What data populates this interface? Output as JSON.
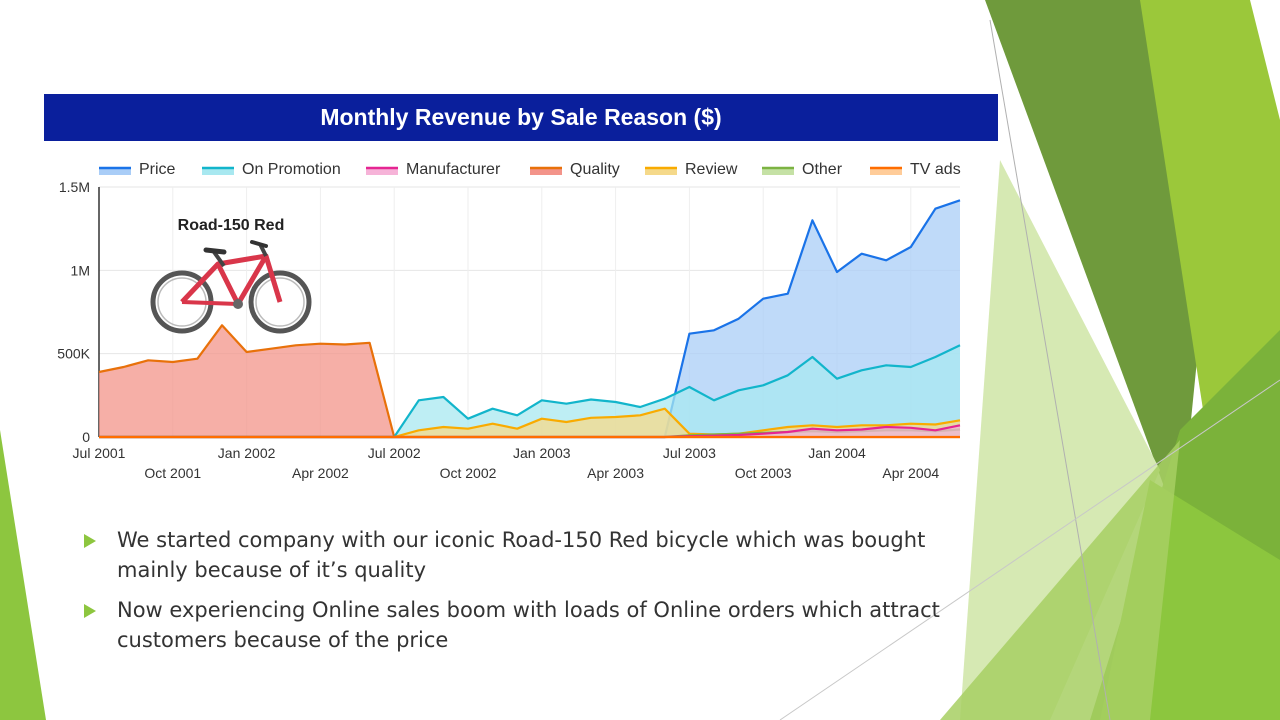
{
  "slide": {
    "bullets": [
      "We started company with our iconic Road-150 Red bicycle which was bought mainly because of it’s quality",
      "Now experiencing Online sales boom with loads of Online orders which attract customers because of the price"
    ],
    "bullet_color": "#8dc63f"
  },
  "chart_data": {
    "type": "area",
    "title": "Monthly Revenue by Sale Reason ($)",
    "title_bg": "#0a1f9c",
    "xlabel": "",
    "ylabel": "",
    "ylim": [
      0,
      1500000
    ],
    "yticks": [
      0,
      500000,
      1000000,
      1500000
    ],
    "ytick_labels": [
      "0",
      "500K",
      "1M",
      "1.5M"
    ],
    "grid": true,
    "legend_position": "top",
    "annotation": "Road-150 Red",
    "annotation_icon": "bicycle-icon",
    "x": [
      "Jul 2001",
      "Aug 2001",
      "Sep 2001",
      "Oct 2001",
      "Nov 2001",
      "Dec 2001",
      "Jan 2002",
      "Feb 2002",
      "Mar 2002",
      "Apr 2002",
      "May 2002",
      "Jun 2002",
      "Jul 2002",
      "Aug 2002",
      "Sep 2002",
      "Oct 2002",
      "Nov 2002",
      "Dec 2002",
      "Jan 2003",
      "Feb 2003",
      "Mar 2003",
      "Apr 2003",
      "May 2003",
      "Jun 2003",
      "Jul 2003",
      "Aug 2003",
      "Sep 2003",
      "Oct 2003",
      "Nov 2003",
      "Dec 2003",
      "Jan 2004",
      "Feb 2004",
      "Mar 2004",
      "Apr 2004",
      "May 2004",
      "Jun 2004"
    ],
    "xtick_labels": [
      {
        "label": "Jul 2001",
        "row": 1
      },
      {
        "label": "Oct 2001",
        "row": 2
      },
      {
        "label": "Jan 2002",
        "row": 1
      },
      {
        "label": "Apr 2002",
        "row": 2
      },
      {
        "label": "Jul 2002",
        "row": 1
      },
      {
        "label": "Oct 2002",
        "row": 2
      },
      {
        "label": "Jan 2003",
        "row": 1
      },
      {
        "label": "Apr 2003",
        "row": 2
      },
      {
        "label": "Jul 2003",
        "row": 1
      },
      {
        "label": "Oct 2003",
        "row": 2
      },
      {
        "label": "Jan 2004",
        "row": 1
      },
      {
        "label": "Apr 2004",
        "row": 2
      }
    ],
    "series": [
      {
        "name": "Price",
        "color": "#1a73e8",
        "fill": "#a9cdf7",
        "values": [
          0,
          0,
          0,
          0,
          0,
          0,
          0,
          0,
          0,
          0,
          0,
          0,
          0,
          0,
          0,
          0,
          0,
          0,
          0,
          0,
          0,
          0,
          0,
          0,
          620000,
          640000,
          710000,
          830000,
          860000,
          1300000,
          990000,
          1100000,
          1060000,
          1140000,
          1370000,
          1420000
        ]
      },
      {
        "name": "On Promotion",
        "color": "#12b5cb",
        "fill": "#a8e8f0",
        "values": [
          0,
          0,
          0,
          0,
          0,
          0,
          0,
          0,
          0,
          0,
          0,
          0,
          0,
          220000,
          240000,
          110000,
          170000,
          130000,
          220000,
          200000,
          225000,
          210000,
          180000,
          230000,
          300000,
          220000,
          280000,
          310000,
          370000,
          480000,
          350000,
          400000,
          430000,
          420000,
          480000,
          550000
        ]
      },
      {
        "name": "Manufacturer",
        "color": "#e52592",
        "fill": "#f6b3d8",
        "values": [
          0,
          0,
          0,
          0,
          0,
          0,
          0,
          0,
          0,
          0,
          0,
          0,
          0,
          0,
          0,
          0,
          0,
          0,
          0,
          0,
          0,
          0,
          0,
          0,
          5000,
          8000,
          12000,
          20000,
          30000,
          50000,
          40000,
          45000,
          60000,
          55000,
          40000,
          70000
        ]
      },
      {
        "name": "Quality",
        "color": "#e8710a",
        "fill": "#f3948a",
        "values": [
          390000,
          420000,
          460000,
          450000,
          470000,
          670000,
          510000,
          530000,
          550000,
          560000,
          555000,
          565000,
          0,
          0,
          0,
          0,
          0,
          0,
          0,
          0,
          0,
          0,
          0,
          0,
          0,
          0,
          0,
          0,
          0,
          0,
          0,
          0,
          0,
          0,
          0,
          0
        ]
      },
      {
        "name": "Review",
        "color": "#f9ab00",
        "fill": "#f5d98a",
        "values": [
          0,
          0,
          0,
          0,
          0,
          0,
          0,
          0,
          0,
          0,
          0,
          0,
          0,
          40000,
          60000,
          50000,
          80000,
          50000,
          110000,
          90000,
          115000,
          120000,
          130000,
          170000,
          20000,
          15000,
          20000,
          40000,
          60000,
          70000,
          60000,
          70000,
          70000,
          80000,
          75000,
          100000
        ]
      },
      {
        "name": "Other",
        "color": "#7cb342",
        "fill": "#c5e1a5",
        "values": [
          0,
          0,
          0,
          0,
          0,
          0,
          0,
          0,
          0,
          0,
          0,
          0,
          0,
          0,
          0,
          0,
          0,
          0,
          0,
          0,
          0,
          0,
          0,
          0,
          10000,
          15000,
          20000,
          25000,
          30000,
          35000,
          30000,
          35000,
          40000,
          40000,
          35000,
          45000
        ]
      },
      {
        "name": "TV ads",
        "color": "#ff6d00",
        "fill": "#ffcc99",
        "values": [
          0,
          0,
          0,
          0,
          0,
          0,
          0,
          0,
          0,
          0,
          0,
          0,
          0,
          0,
          0,
          0,
          0,
          0,
          0,
          0,
          0,
          0,
          0,
          0,
          0,
          0,
          0,
          0,
          0,
          0,
          0,
          0,
          0,
          0,
          0,
          0
        ]
      }
    ]
  }
}
